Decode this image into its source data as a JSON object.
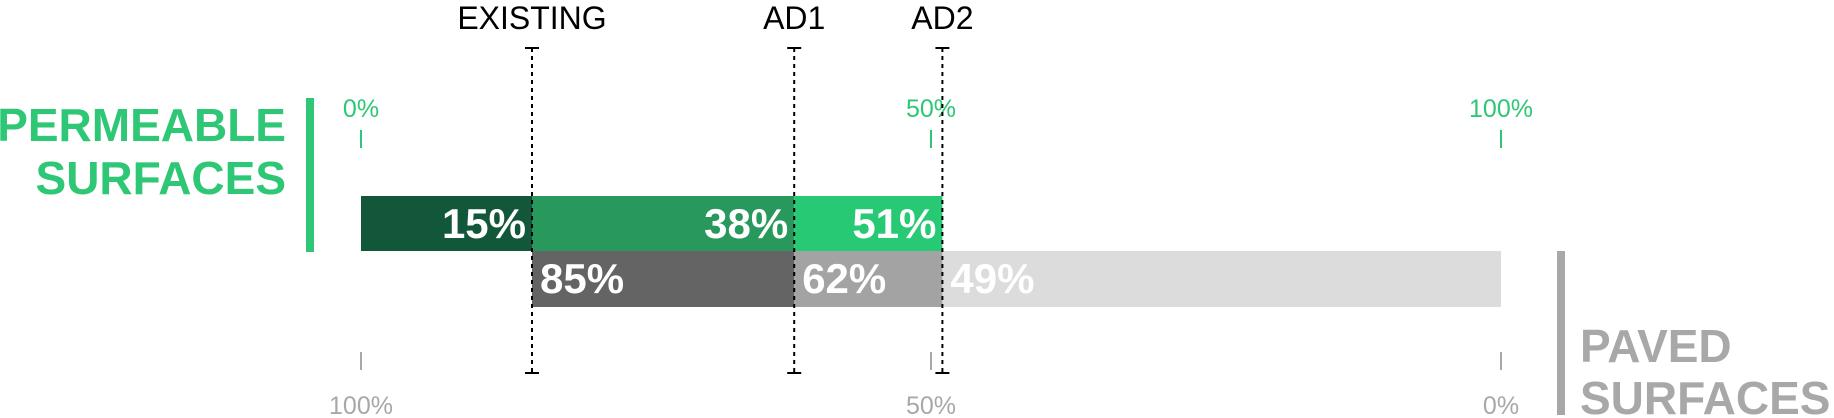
{
  "chart_data": {
    "type": "bar",
    "orientation": "horizontal",
    "stacked": true,
    "xlim": [
      0,
      100
    ],
    "grid": false,
    "scenarios": [
      "EXISTING",
      "AD1",
      "AD2"
    ],
    "permeable": {
      "label_line1": "PERMEABLE",
      "label_line2": "SURFACES",
      "values": [
        15,
        38,
        51
      ],
      "value_labels": [
        "15%",
        "38%",
        "51%"
      ],
      "colors": [
        "#13573a",
        "#28985c",
        "#27c975"
      ],
      "axis_ticks": [
        0,
        50,
        100
      ],
      "axis_tick_labels": [
        "0%",
        "50%",
        "100%"
      ],
      "axis_color": "#2ec775"
    },
    "paved": {
      "label_line1": "PAVED",
      "label_line2": "SURFACES",
      "values": [
        85,
        62,
        49
      ],
      "value_labels": [
        "85%",
        "62%",
        "49%"
      ],
      "colors": [
        "#646464",
        "#a3a3a3",
        "#dcdcdc"
      ],
      "axis_ticks": [
        100,
        50,
        0
      ],
      "axis_tick_labels": [
        "100%",
        "50%",
        "0%"
      ],
      "axis_color": "#a8a8a8"
    }
  }
}
